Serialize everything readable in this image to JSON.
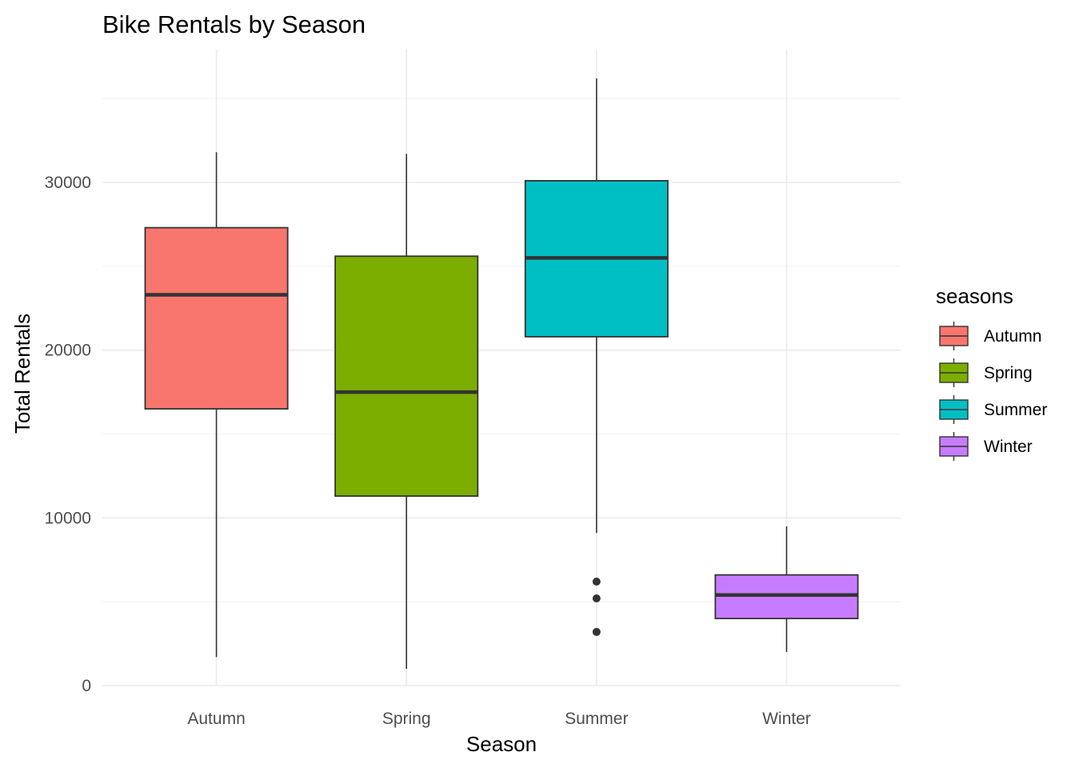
{
  "chart_data": {
    "type": "boxplot",
    "title": "Bike Rentals by Season",
    "xlabel": "Season",
    "ylabel": "Total Rentals",
    "ylim": [
      0,
      37500
    ],
    "y_ticks": [
      0,
      10000,
      20000,
      30000
    ],
    "y_tick_labels": [
      "0",
      "10000",
      "20000",
      "30000"
    ],
    "categories": [
      "Autumn",
      "Spring",
      "Summer",
      "Winter"
    ],
    "grid": true,
    "legend": {
      "title": "seasons",
      "position": "right",
      "entries": [
        "Autumn",
        "Spring",
        "Summer",
        "Winter"
      ]
    },
    "series": [
      {
        "name": "Autumn",
        "color": "#F8766D",
        "whisker_low": 1700,
        "q1": 16500,
        "median": 23300,
        "q3": 27300,
        "whisker_high": 31800,
        "outliers": []
      },
      {
        "name": "Spring",
        "color": "#7CAE00",
        "whisker_low": 1000,
        "q1": 11300,
        "median": 17500,
        "q3": 25600,
        "whisker_high": 31700,
        "outliers": []
      },
      {
        "name": "Summer",
        "color": "#00BFC4",
        "whisker_low": 9100,
        "q1": 20800,
        "median": 25500,
        "q3": 30100,
        "whisker_high": 36200,
        "outliers": [
          6200,
          5200,
          3200
        ]
      },
      {
        "name": "Winter",
        "color": "#C77CFF",
        "whisker_low": 2000,
        "q1": 4000,
        "median": 5400,
        "q3": 6600,
        "whisker_high": 9500,
        "outliers": []
      }
    ]
  }
}
